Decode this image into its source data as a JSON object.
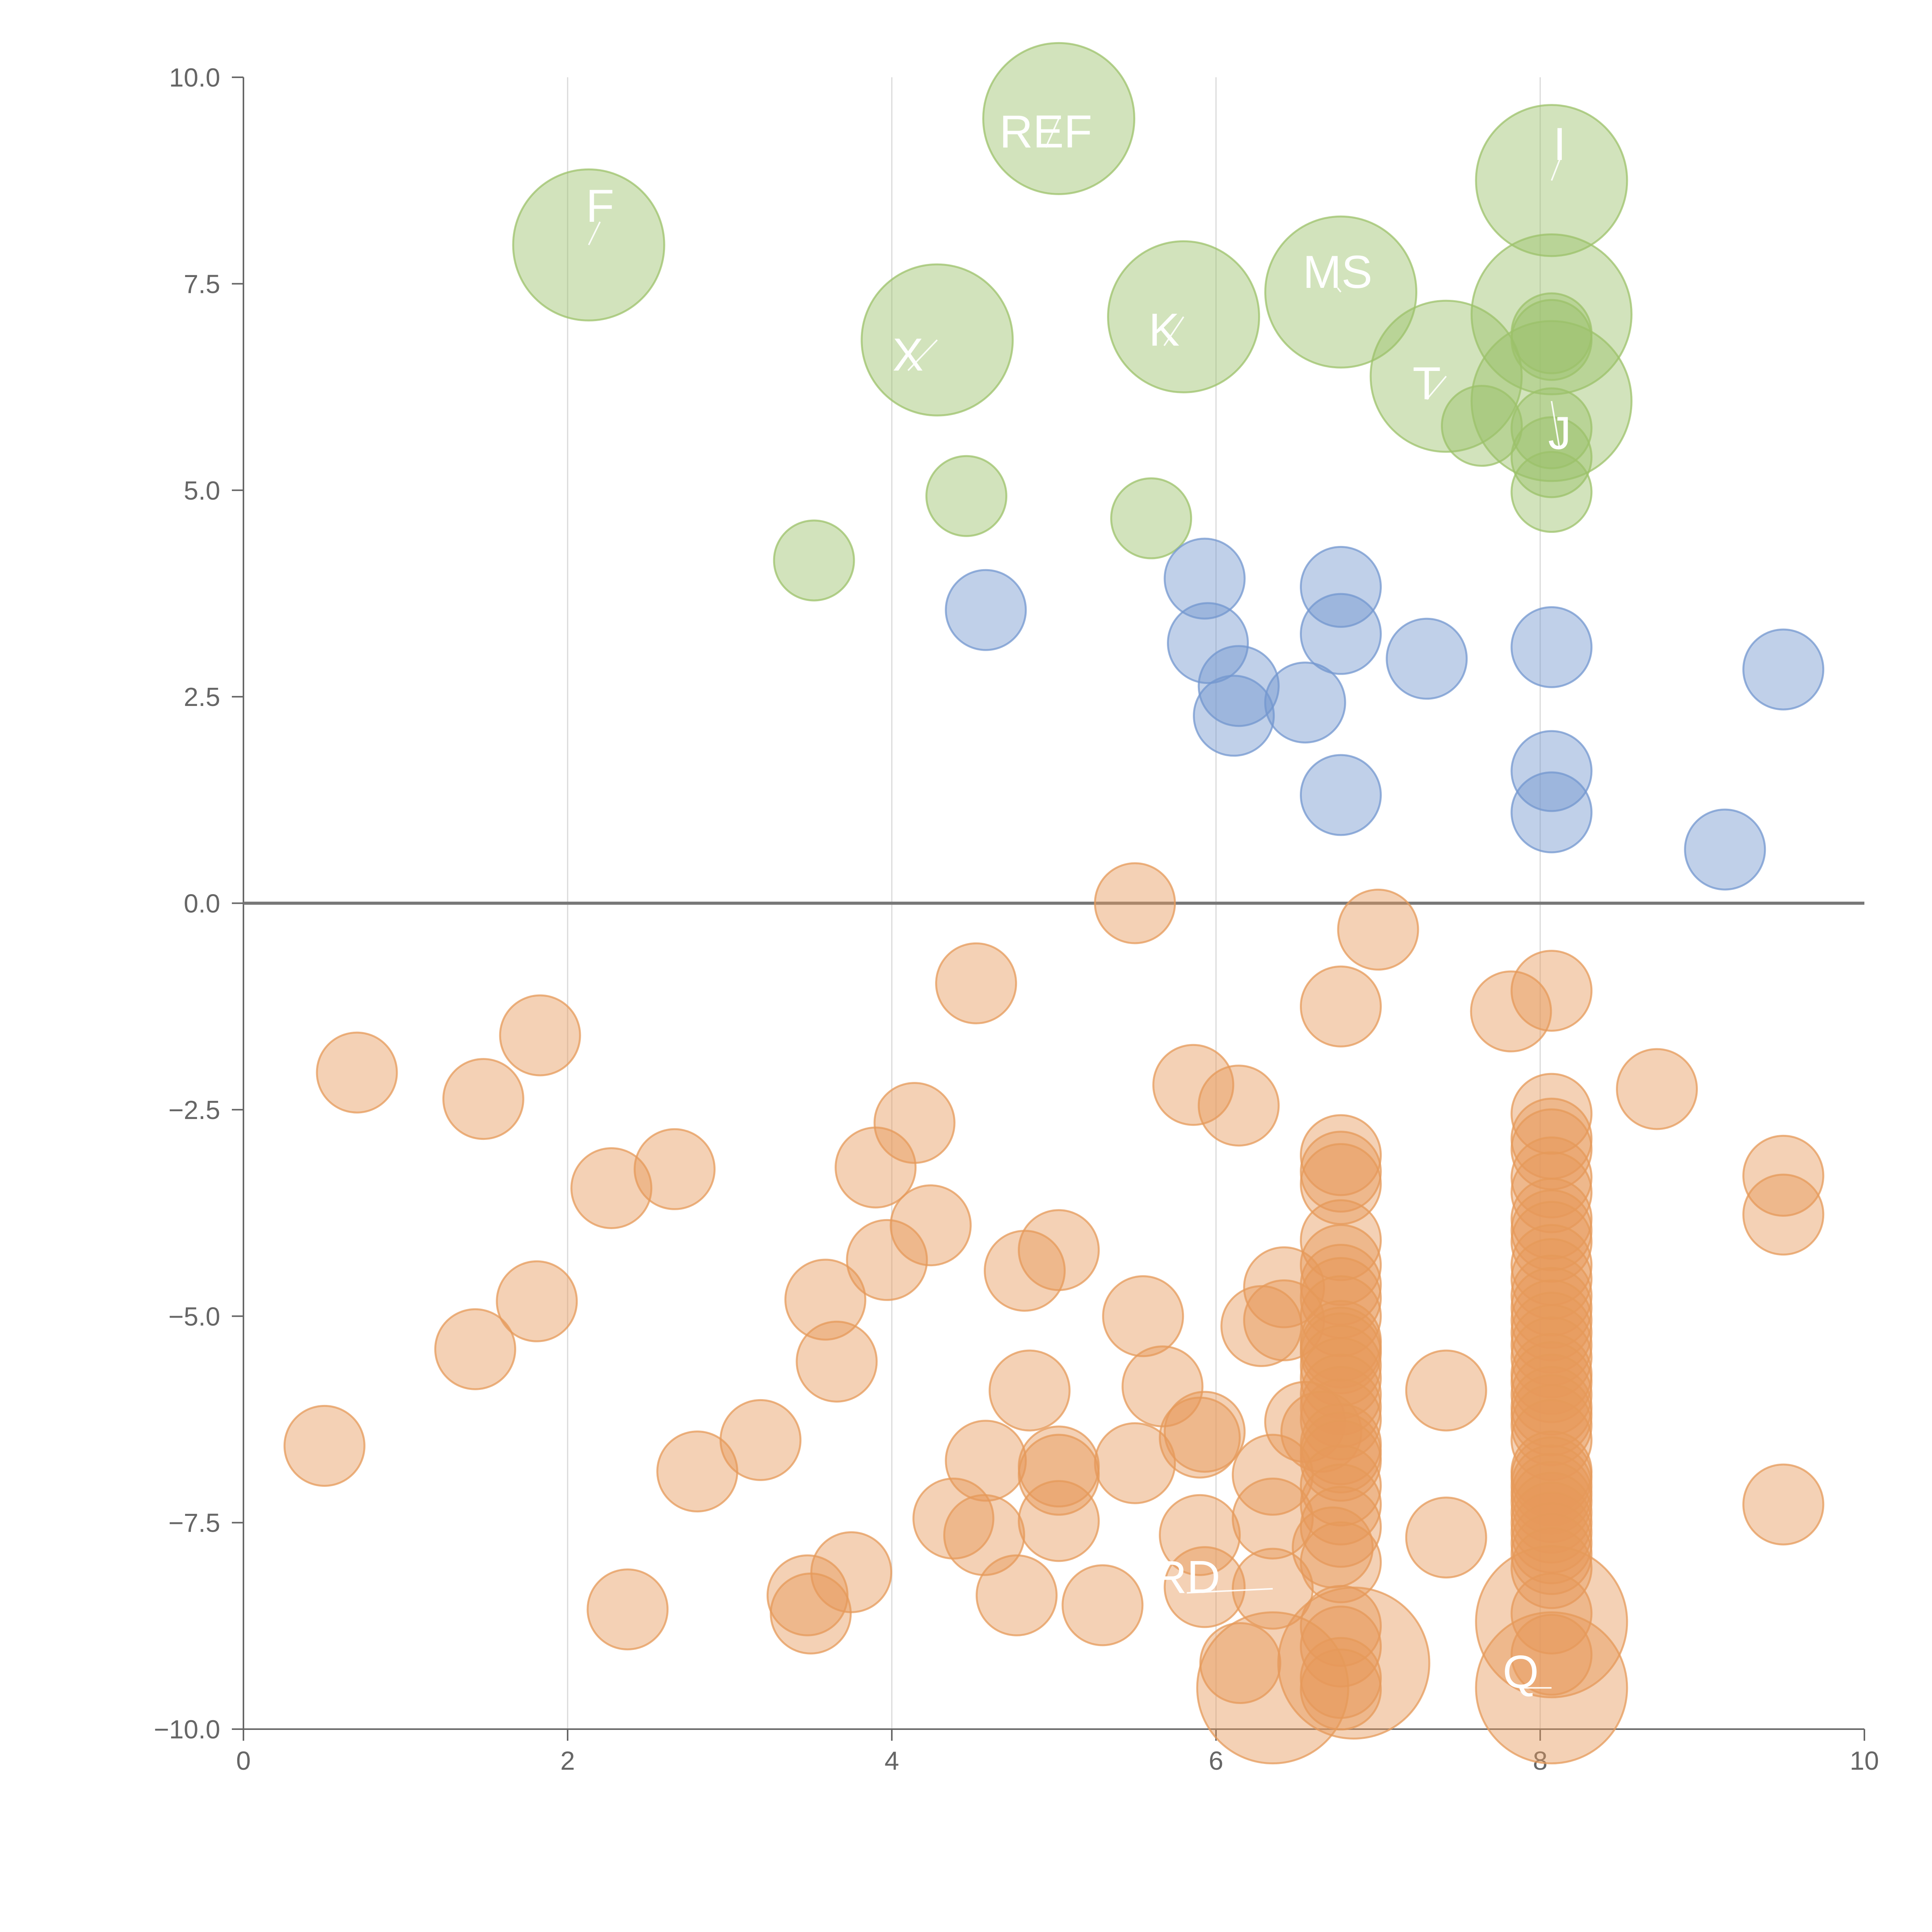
{
  "chart_data": {
    "type": "scatter",
    "title": "",
    "xlabel": "",
    "ylabel": "",
    "xlim": [
      0,
      10
    ],
    "ylim": [
      -10,
      10
    ],
    "xticks": [
      "0",
      "2",
      "4",
      "6",
      "8",
      "10"
    ],
    "yticks": [
      "10.0",
      "7.5",
      "5.0",
      "2.5",
      "0.0",
      "−2.5",
      "−5.0",
      "−7.5",
      "−10.0"
    ],
    "grid": "vertical",
    "legend": "none",
    "colors": {
      "green": "#9cc26a",
      "blue": "#7397cf",
      "orange": "#e69a5a",
      "axis": "#666666",
      "grid": "#d9d9d9",
      "zero_line": "#777777"
    },
    "series": [
      {
        "name": "green",
        "color": "#9cc26a",
        "points": [
          [
            5.03,
            9.5,
            1.7
          ],
          [
            8.07,
            8.75,
            1.7
          ],
          [
            2.13,
            7.97,
            1.7
          ],
          [
            6.77,
            7.4,
            1.7
          ],
          [
            8.07,
            7.13,
            1.8
          ],
          [
            5.8,
            7.1,
            1.7
          ],
          [
            4.28,
            6.82,
            1.7
          ],
          [
            7.42,
            6.38,
            1.7
          ],
          [
            8.07,
            6.08,
            1.8
          ],
          [
            8.07,
            6.9,
            0.9
          ],
          [
            8.07,
            6.82,
            0.9
          ],
          [
            8.07,
            5.75,
            0.9
          ],
          [
            7.64,
            5.78,
            0.9
          ],
          [
            8.07,
            5.4,
            0.9
          ],
          [
            8.07,
            4.98,
            0.9
          ],
          [
            4.46,
            4.93,
            0.9
          ],
          [
            5.6,
            4.66,
            0.9
          ],
          [
            3.52,
            4.15,
            0.9
          ]
        ]
      },
      {
        "name": "blue",
        "color": "#7397cf",
        "points": [
          [
            5.93,
            3.93,
            0.9
          ],
          [
            6.77,
            3.83,
            0.9
          ],
          [
            4.58,
            3.55,
            0.9
          ],
          [
            6.77,
            3.26,
            0.9
          ],
          [
            5.95,
            3.15,
            0.9
          ],
          [
            8.07,
            3.1,
            0.9
          ],
          [
            7.3,
            2.96,
            0.9
          ],
          [
            9.5,
            2.83,
            0.9
          ],
          [
            6.14,
            2.63,
            0.9
          ],
          [
            6.55,
            2.43,
            0.9
          ],
          [
            6.11,
            2.27,
            0.9
          ],
          [
            8.07,
            1.6,
            0.9
          ],
          [
            6.77,
            1.31,
            0.9
          ],
          [
            8.07,
            1.1,
            0.9
          ],
          [
            9.14,
            0.65,
            0.9
          ]
        ]
      },
      {
        "name": "orange",
        "color": "#e69a5a",
        "points": [
          [
            5.5,
            0.0,
            0.9
          ],
          [
            7.0,
            -0.32,
            0.9
          ],
          [
            4.52,
            -0.97,
            0.9
          ],
          [
            8.07,
            -1.06,
            0.9
          ],
          [
            6.77,
            -1.25,
            0.9
          ],
          [
            7.82,
            -1.31,
            0.9
          ],
          [
            1.83,
            -1.6,
            0.9
          ],
          [
            0.7,
            -2.05,
            0.9
          ],
          [
            5.86,
            -2.2,
            0.9
          ],
          [
            8.72,
            -2.25,
            0.9
          ],
          [
            1.48,
            -2.37,
            0.9
          ],
          [
            6.14,
            -2.45,
            0.9
          ],
          [
            8.07,
            -2.55,
            0.9
          ],
          [
            4.14,
            -2.66,
            0.9
          ],
          [
            8.07,
            -2.85,
            0.9
          ],
          [
            8.07,
            -2.98,
            0.9
          ],
          [
            6.77,
            -3.05,
            0.9
          ],
          [
            3.9,
            -3.2,
            0.9
          ],
          [
            2.66,
            -3.22,
            0.9
          ],
          [
            6.77,
            -3.25,
            0.9
          ],
          [
            9.5,
            -3.3,
            0.9
          ],
          [
            8.07,
            -3.32,
            0.9
          ],
          [
            6.77,
            -3.4,
            0.9
          ],
          [
            2.27,
            -3.45,
            0.9
          ],
          [
            8.07,
            -3.5,
            0.9
          ],
          [
            9.5,
            -3.77,
            0.9
          ],
          [
            8.07,
            -3.82,
            0.9
          ],
          [
            4.24,
            -3.9,
            0.9
          ],
          [
            8.07,
            -3.96,
            0.9
          ],
          [
            8.07,
            -4.1,
            0.9
          ],
          [
            6.77,
            -4.08,
            0.9
          ],
          [
            5.03,
            -4.2,
            0.9
          ],
          [
            3.97,
            -4.32,
            0.9
          ],
          [
            8.07,
            -4.38,
            0.9
          ],
          [
            6.77,
            -4.38,
            0.9
          ],
          [
            4.82,
            -4.45,
            0.9
          ],
          [
            8.07,
            -4.55,
            0.9
          ],
          [
            6.77,
            -4.62,
            0.9
          ],
          [
            6.42,
            -4.65,
            0.9
          ],
          [
            8.07,
            -4.75,
            0.9
          ],
          [
            6.77,
            -4.78,
            0.9
          ],
          [
            3.59,
            -4.8,
            0.9
          ],
          [
            1.81,
            -4.82,
            0.9
          ],
          [
            8.07,
            -4.9,
            0.9
          ],
          [
            6.77,
            -5.0,
            0.9
          ],
          [
            5.55,
            -5.0,
            0.9
          ],
          [
            6.42,
            -5.05,
            0.9
          ],
          [
            8.07,
            -5.05,
            0.9
          ],
          [
            6.28,
            -5.12,
            0.9
          ],
          [
            8.07,
            -5.2,
            0.9
          ],
          [
            6.77,
            -5.3,
            0.9
          ],
          [
            8.07,
            -5.35,
            0.9
          ],
          [
            6.77,
            -5.38,
            0.9
          ],
          [
            1.43,
            -5.4,
            0.9
          ],
          [
            6.77,
            -5.45,
            0.9
          ],
          [
            8.07,
            -5.5,
            0.9
          ],
          [
            3.66,
            -5.55,
            0.9
          ],
          [
            6.77,
            -5.6,
            0.9
          ],
          [
            8.07,
            -5.7,
            0.9
          ],
          [
            6.77,
            -5.75,
            0.9
          ],
          [
            8.07,
            -5.8,
            0.9
          ],
          [
            5.67,
            -5.85,
            0.9
          ],
          [
            4.85,
            -5.9,
            0.9
          ],
          [
            7.42,
            -5.9,
            0.9
          ],
          [
            8.07,
            -5.95,
            0.9
          ],
          [
            6.77,
            -5.95,
            0.9
          ],
          [
            6.77,
            -6.1,
            0.9
          ],
          [
            8.07,
            -6.1,
            0.9
          ],
          [
            8.07,
            -6.2,
            0.9
          ],
          [
            6.77,
            -6.25,
            0.9
          ],
          [
            6.55,
            -6.28,
            0.9
          ],
          [
            8.07,
            -6.32,
            0.9
          ],
          [
            6.65,
            -6.4,
            0.9
          ],
          [
            5.93,
            -6.4,
            0.9
          ],
          [
            5.9,
            -6.47,
            0.9
          ],
          [
            8.07,
            -6.5,
            0.9
          ],
          [
            3.19,
            -6.5,
            0.9
          ],
          [
            6.77,
            -6.55,
            0.9
          ],
          [
            0.5,
            -6.57,
            0.9
          ],
          [
            6.77,
            -6.65,
            0.9
          ],
          [
            6.77,
            -6.75,
            0.9
          ],
          [
            4.58,
            -6.75,
            0.9
          ],
          [
            5.5,
            -6.78,
            0.9
          ],
          [
            5.03,
            -6.82,
            0.9
          ],
          [
            2.8,
            -6.88,
            0.9
          ],
          [
            8.07,
            -6.88,
            0.9
          ],
          [
            5.03,
            -6.92,
            0.9
          ],
          [
            6.35,
            -6.92,
            0.9
          ],
          [
            8.07,
            -6.95,
            0.9
          ],
          [
            8.07,
            -7.05,
            0.9
          ],
          [
            6.77,
            -7.05,
            0.9
          ],
          [
            8.07,
            -7.15,
            0.9
          ],
          [
            8.07,
            -7.25,
            0.9
          ],
          [
            6.77,
            -7.28,
            0.9
          ],
          [
            9.5,
            -7.28,
            0.9
          ],
          [
            8.07,
            -7.38,
            0.9
          ],
          [
            4.38,
            -7.45,
            0.9
          ],
          [
            6.35,
            -7.45,
            0.9
          ],
          [
            5.03,
            -7.48,
            0.9
          ],
          [
            8.07,
            -7.5,
            0.9
          ],
          [
            6.77,
            -7.55,
            0.9
          ],
          [
            8.07,
            -7.62,
            0.9
          ],
          [
            5.9,
            -7.65,
            0.9
          ],
          [
            4.57,
            -7.65,
            0.9
          ],
          [
            7.42,
            -7.68,
            0.9
          ],
          [
            8.07,
            -7.75,
            0.9
          ],
          [
            6.72,
            -7.8,
            0.9
          ],
          [
            8.07,
            -7.88,
            0.9
          ],
          [
            6.77,
            -7.98,
            0.9
          ],
          [
            8.07,
            -8.05,
            0.9
          ],
          [
            3.75,
            -8.1,
            0.9
          ],
          [
            5.93,
            -8.28,
            0.9
          ],
          [
            6.35,
            -8.3,
            0.9
          ],
          [
            3.48,
            -8.38,
            0.9
          ],
          [
            4.77,
            -8.38,
            0.9
          ],
          [
            5.3,
            -8.5,
            0.9
          ],
          [
            2.37,
            -8.55,
            0.9
          ],
          [
            3.5,
            -8.6,
            0.9
          ],
          [
            8.07,
            -8.6,
            0.9
          ],
          [
            6.77,
            -8.75,
            0.9
          ],
          [
            8.07,
            -8.7,
            1.7
          ],
          [
            6.77,
            -9.0,
            0.9
          ],
          [
            8.07,
            -9.1,
            0.9
          ],
          [
            6.15,
            -9.2,
            0.9
          ],
          [
            6.85,
            -9.2,
            1.7
          ],
          [
            6.77,
            -9.38,
            0.9
          ],
          [
            6.77,
            -9.52,
            0.9
          ],
          [
            6.35,
            -9.5,
            1.7
          ],
          [
            8.07,
            -9.5,
            1.7
          ]
        ]
      }
    ],
    "annotations": [
      {
        "text": "F",
        "x": 2.2,
        "y": 8.25,
        "point": [
          2.13,
          7.97
        ]
      },
      {
        "text": "REF",
        "x": 4.95,
        "y": 9.15,
        "point": [
          5.03,
          9.5
        ]
      },
      {
        "text": "I",
        "x": 8.12,
        "y": 9.0,
        "point": [
          8.07,
          8.75
        ]
      },
      {
        "text": "MS",
        "x": 6.75,
        "y": 7.45,
        "point": [
          6.77,
          7.4
        ]
      },
      {
        "text": "K",
        "x": 5.68,
        "y": 6.75,
        "point": [
          5.8,
          7.1
        ]
      },
      {
        "text": "X",
        "x": 4.1,
        "y": 6.45,
        "point": [
          4.28,
          6.82
        ]
      },
      {
        "text": "T",
        "x": 7.3,
        "y": 6.1,
        "point": [
          7.42,
          6.38
        ]
      },
      {
        "text": "J",
        "x": 8.12,
        "y": 5.5,
        "point": [
          8.07,
          6.08
        ]
      },
      {
        "text": "RD",
        "x": 5.82,
        "y": -8.35,
        "point": [
          6.35,
          -8.3
        ]
      },
      {
        "text": "Q",
        "x": 7.88,
        "y": -9.5,
        "point": [
          8.07,
          -9.5
        ]
      }
    ]
  }
}
